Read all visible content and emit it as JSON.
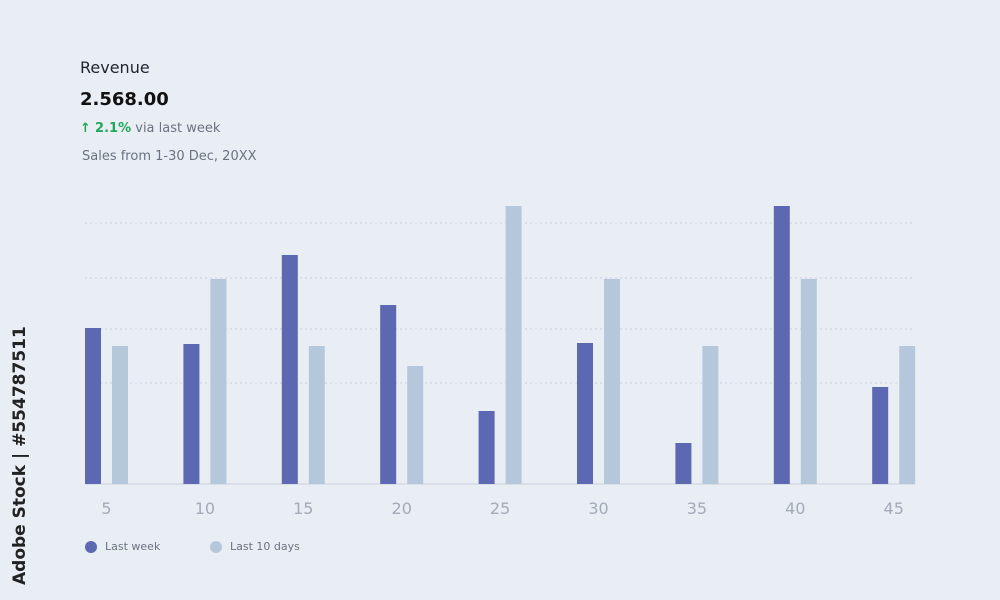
{
  "header": {
    "title": "Revenue",
    "value": "2.568.00",
    "change_icon": "arrow-up-icon",
    "change_arrow": "↑",
    "change_pct": "2.1%",
    "change_text": "via last week",
    "subtitle": "Sales from 1-30 Dec, 20XX"
  },
  "watermark": "Adobe Stock | #554787511",
  "chart_data": {
    "type": "bar",
    "title": "Revenue",
    "xlabel": "",
    "ylabel": "",
    "categories": [
      "5",
      "10",
      "15",
      "20",
      "25",
      "30",
      "35",
      "40",
      "45"
    ],
    "series": [
      {
        "name": "Last week",
        "color": "#5c68b2",
        "values": [
          156,
          140,
          229,
          179,
          73,
          141,
          41,
          278,
          97
        ]
      },
      {
        "name": "Last 10 days",
        "color": "#b5c8db",
        "values": [
          138,
          205,
          138,
          118,
          278,
          205,
          138,
          205,
          138
        ]
      }
    ],
    "gridlines": [
      101,
      155,
      206,
      261
    ],
    "ylim": [
      0,
      300
    ],
    "grid": true,
    "legend": "bottom-left"
  }
}
